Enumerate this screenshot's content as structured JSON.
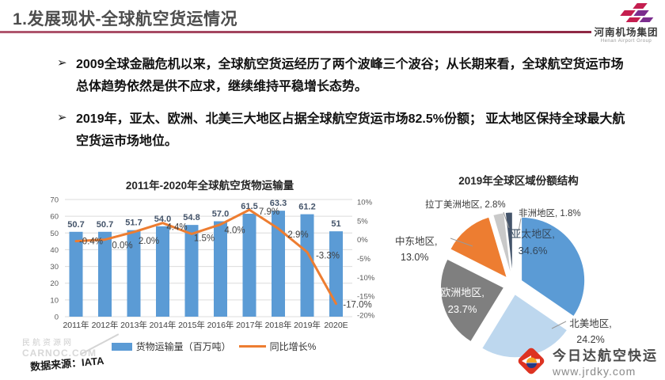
{
  "slide": {
    "title": "1.发展现状-全球航空货运情况",
    "header_logo": {
      "name": "河南机场集团",
      "subtitle": "Henan Airport Group"
    },
    "bullet_marker": "➢",
    "bullets": [
      "2009全球金融危机以来，全球航空货运经历了两个波峰三个波谷；从长期来看，全球航空货运市场总体趋势依然是供不应求，继续维持平稳增长态势。",
      "2019年，亚太、欧洲、北美三大地区占据全球航空货运市场82.5%份额； 亚太地区保持全球最大航空货运市场地位。"
    ],
    "source": "数据来源：IATA",
    "watermark": {
      "line1": "民航资源网",
      "line2": "CARNOC.COM"
    },
    "footer_logo": {
      "name": "今日达航空快运",
      "url": "www.jrdky.com"
    }
  },
  "chart_data": [
    {
      "type": "bar",
      "title": "2011年-2020年全球航空货物运输量",
      "categories": [
        "2011年",
        "2012年",
        "2013年",
        "2014年",
        "2015年",
        "2016年",
        "2017年",
        "2018年",
        "2019年",
        "2020E"
      ],
      "series": [
        {
          "name": "货物运输量（百万吨）",
          "kind": "bar",
          "color": "#5B9BD5",
          "values": [
            50.7,
            50.7,
            51.7,
            54.0,
            54.8,
            57.0,
            61.5,
            63.3,
            61.2,
            51
          ],
          "labels": [
            "50.7",
            "50.7",
            "51.7",
            "54.0",
            "54.8",
            "57.0",
            "61.5",
            "63.3",
            "61.2",
            "51"
          ]
        },
        {
          "name": "同比增长%",
          "kind": "line",
          "color": "#ED7D31",
          "values": [
            -0.4,
            0.0,
            2.0,
            4.4,
            1.5,
            4.0,
            7.9,
            2.9,
            -3.3,
            -17.0
          ],
          "labels": [
            "-0.4%",
            "0.0%",
            "2.0%",
            "4.4%",
            "1.5%",
            "4.0%",
            "7.9%",
            "2.9%",
            "-3.3%",
            "-17.0%"
          ]
        }
      ],
      "left_axis": {
        "min": 0,
        "max": 70,
        "ticks": [
          70,
          60,
          50,
          40,
          30,
          20,
          10,
          0
        ]
      },
      "right_axis": {
        "min": -20,
        "max": 10,
        "ticks": [
          "10%",
          "5%",
          "0%",
          "-5%",
          "-10%",
          "-15%",
          "-20%"
        ]
      },
      "grid": true,
      "legend_position": "bottom"
    },
    {
      "type": "pie",
      "title": "2019年全球区域份额结构",
      "start_angle_deg": 0,
      "exploded": true,
      "slices": [
        {
          "label": "亚太地区",
          "value": 34.6,
          "line1": "亚太地区,",
          "line2": "34.6%",
          "color": "#5B9BD5",
          "label_position": "inside"
        },
        {
          "label": "北美地区",
          "value": 24.2,
          "line1": "北美地区,",
          "line2": "24.2%",
          "color": "#BDD7EE",
          "label_position": "outside"
        },
        {
          "label": "欧洲地区",
          "value": 23.7,
          "line1": "欧洲地区,",
          "line2": "23.7%",
          "color": "#7F7F7F",
          "label_position": "inside"
        },
        {
          "label": "中东地区",
          "value": 13.0,
          "line1": "中东地区,",
          "line2": "13.0%",
          "color": "#ED7D31",
          "label_position": "outside"
        },
        {
          "label": "拉丁美洲地区",
          "value": 2.8,
          "text": "拉丁美洲地区, 2.8%",
          "color": "#C9C9C9",
          "label_position": "outside"
        },
        {
          "label": "非洲地区",
          "value": 1.8,
          "text": "非洲地区, 1.8%",
          "color": "#44546A",
          "label_position": "outside"
        }
      ]
    }
  ],
  "colors": {
    "bar_blue": "#5B9BD5",
    "line_orange": "#ED7D31",
    "divider_maroon": "#8E2744",
    "logo_crimson": "#C41E4F",
    "logo_purple": "#7B2D8E",
    "footer_red": "#DD3322"
  }
}
